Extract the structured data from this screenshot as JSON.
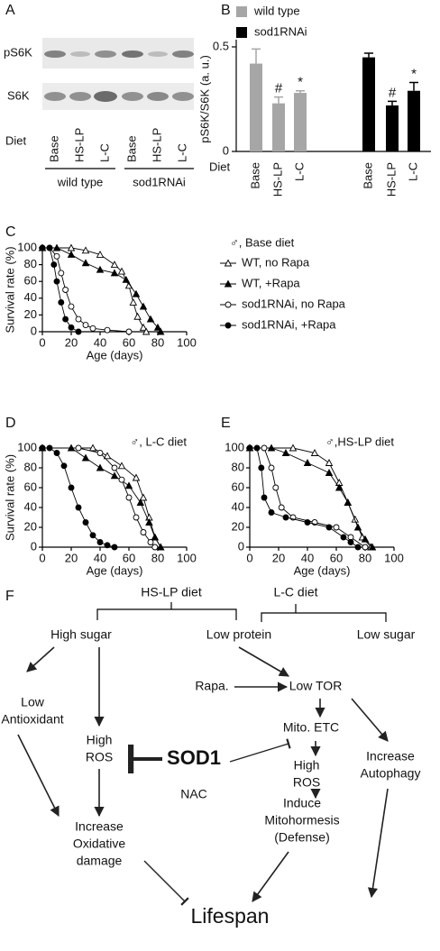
{
  "panel_letters": [
    "A",
    "B",
    "C",
    "D",
    "E",
    "F"
  ],
  "panel_a": {
    "rows": [
      "pS6K",
      "S6K"
    ],
    "diet_label": "Diet",
    "lanes": [
      "Base",
      "HS-LP",
      "L-C",
      "Base",
      "HS-LP",
      "L-C"
    ],
    "groups": [
      "wild type",
      "sod1RNAi"
    ]
  },
  "chart_data": [
    {
      "type": "bar",
      "ylabel": "pS6K/S6K (a. u.)",
      "xlabel": "Diet",
      "categories": [
        "Base",
        "HS-LP",
        "L-C"
      ],
      "ylim": [
        0,
        0.5
      ],
      "yticks": [
        0,
        0.5
      ],
      "series": [
        {
          "name": "wild type",
          "color": "#a6a6a6",
          "values": [
            0.42,
            0.23,
            0.28
          ],
          "errors": [
            0.07,
            0.03,
            0.01
          ],
          "annotations": [
            null,
            "#",
            "*"
          ]
        },
        {
          "name": "sod1RNAi",
          "color": "#000000",
          "values": [
            0.45,
            0.22,
            0.29
          ],
          "errors": [
            0.02,
            0.02,
            0.04
          ],
          "annotations": [
            null,
            "#",
            "*"
          ]
        }
      ]
    },
    {
      "type": "survival",
      "legend_title": "♂, Base diet",
      "xlabel": "Age (days)",
      "ylabel": "Survival rate (%)",
      "xlim": [
        0,
        100
      ],
      "xticks": [
        0,
        20,
        40,
        60,
        80,
        100
      ],
      "ylim": [
        0,
        100
      ],
      "yticks": [
        0,
        20,
        40,
        60,
        80,
        100
      ],
      "series": [
        {
          "name": "WT, no Rapa",
          "marker": "open-triangle",
          "x": [
            0,
            20,
            30,
            40,
            50,
            55,
            60,
            63,
            66,
            70,
            72
          ],
          "values": [
            100,
            100,
            97,
            92,
            80,
            72,
            55,
            35,
            18,
            5,
            0
          ]
        },
        {
          "name": "WT, +Rapa",
          "marker": "filled-triangle",
          "x": [
            0,
            10,
            20,
            30,
            40,
            50,
            58,
            65,
            70,
            75,
            80,
            82
          ],
          "values": [
            100,
            100,
            92,
            82,
            74,
            70,
            62,
            45,
            30,
            15,
            5,
            0
          ]
        },
        {
          "name": "sod1RNAi, no Rapa",
          "marker": "open-circle",
          "x": [
            0,
            5,
            10,
            13,
            16,
            20,
            25,
            30,
            35,
            45,
            60
          ],
          "values": [
            100,
            100,
            90,
            70,
            50,
            30,
            15,
            8,
            4,
            2,
            0
          ]
        },
        {
          "name": "sod1RNAi, +Rapa",
          "marker": "filled-circle",
          "x": [
            0,
            5,
            8,
            10,
            13,
            16,
            20,
            25
          ],
          "values": [
            100,
            100,
            80,
            60,
            35,
            15,
            5,
            0
          ]
        }
      ]
    },
    {
      "type": "survival",
      "legend_title": "♂, L-C diet",
      "xlabel": "Age (days)",
      "ylabel": "Survival rate (%)",
      "xlim": [
        0,
        100
      ],
      "xticks": [
        0,
        20,
        40,
        60,
        80,
        100
      ],
      "ylim": [
        0,
        100
      ],
      "yticks": [
        0,
        20,
        40,
        60,
        80,
        100
      ],
      "series": [
        {
          "marker": "open-triangle",
          "x": [
            0,
            35,
            45,
            55,
            65,
            70,
            74,
            78,
            82
          ],
          "values": [
            100,
            100,
            92,
            82,
            70,
            50,
            30,
            10,
            0
          ]
        },
        {
          "marker": "filled-triangle",
          "x": [
            0,
            20,
            30,
            40,
            50,
            60,
            68,
            74,
            78,
            82
          ],
          "values": [
            100,
            100,
            90,
            80,
            72,
            62,
            45,
            25,
            10,
            0
          ]
        },
        {
          "marker": "open-circle",
          "x": [
            0,
            25,
            40,
            50,
            55,
            60,
            65,
            70,
            75,
            78
          ],
          "values": [
            100,
            100,
            95,
            80,
            68,
            50,
            30,
            15,
            5,
            0
          ]
        },
        {
          "marker": "filled-circle",
          "x": [
            0,
            5,
            10,
            15,
            20,
            25,
            30,
            35,
            40,
            45,
            50
          ],
          "values": [
            100,
            100,
            95,
            82,
            60,
            40,
            25,
            12,
            5,
            2,
            0
          ]
        }
      ]
    },
    {
      "type": "survival",
      "legend_title": "♂,HS-LP diet",
      "xlabel": "Age (days)",
      "xlim": [
        0,
        100
      ],
      "xticks": [
        0,
        20,
        40,
        60,
        80,
        100
      ],
      "ylim": [
        0,
        100
      ],
      "yticks": [
        0,
        20,
        40,
        60,
        80,
        100
      ],
      "series": [
        {
          "marker": "open-triangle",
          "x": [
            0,
            30,
            45,
            55,
            62,
            68,
            73,
            78,
            84
          ],
          "values": [
            100,
            100,
            95,
            85,
            65,
            45,
            28,
            10,
            0
          ]
        },
        {
          "marker": "filled-triangle",
          "x": [
            0,
            15,
            25,
            40,
            55,
            62,
            68,
            75,
            80,
            85
          ],
          "values": [
            100,
            100,
            95,
            85,
            75,
            60,
            45,
            20,
            8,
            0
          ]
        },
        {
          "marker": "open-circle",
          "x": [
            0,
            10,
            15,
            18,
            22,
            30,
            45,
            60,
            70,
            80
          ],
          "values": [
            100,
            100,
            80,
            60,
            40,
            30,
            25,
            20,
            10,
            0
          ]
        },
        {
          "marker": "filled-circle",
          "x": [
            0,
            5,
            8,
            10,
            15,
            25,
            40,
            55,
            65,
            70,
            75
          ],
          "values": [
            100,
            100,
            80,
            50,
            35,
            30,
            25,
            20,
            10,
            5,
            0
          ]
        }
      ]
    }
  ],
  "diagram": {
    "nodes": [
      {
        "lines": [
          "HS-LP diet"
        ]
      },
      {
        "lines": [
          "L-C diet"
        ]
      },
      {
        "lines": [
          "High sugar"
        ]
      },
      {
        "lines": [
          "Low protein"
        ]
      },
      {
        "lines": [
          "Low sugar"
        ]
      },
      {
        "lines": [
          "Low",
          "Antioxidant"
        ]
      },
      {
        "lines": [
          "High",
          "ROS"
        ]
      },
      {
        "lines": [
          "Rapa."
        ]
      },
      {
        "lines": [
          "Low TOR"
        ]
      },
      {
        "lines": [
          "Mito. ETC"
        ]
      },
      {
        "lines": [
          "Increase",
          "Autophagy"
        ]
      },
      {
        "lines": [
          "SOD1"
        ]
      },
      {
        "lines": [
          "NAC"
        ]
      },
      {
        "lines": [
          "High",
          "ROS"
        ]
      },
      {
        "lines": [
          "Increase",
          "Oxidative",
          "damage"
        ]
      },
      {
        "lines": [
          "Induce",
          "Mitohormesis",
          "(Defense)"
        ]
      },
      {
        "lines": [
          "Lifespan"
        ]
      }
    ]
  }
}
